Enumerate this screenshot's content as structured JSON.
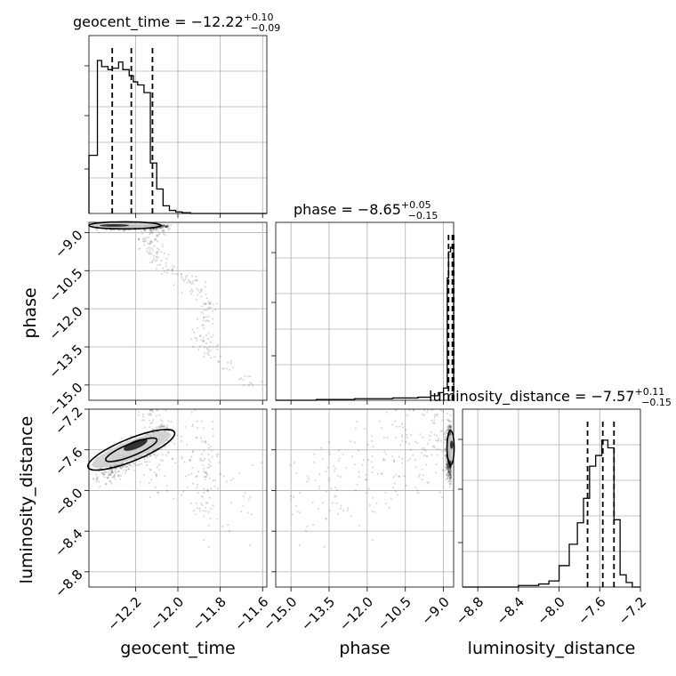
{
  "chart_data": {
    "type": "scatter",
    "variant": "corner-plot",
    "parameters": [
      "geocent_time",
      "phase",
      "luminosity_distance"
    ],
    "titles": [
      {
        "param": "geocent_time",
        "prefix": "geocent_time = −12.22",
        "plus": "+0.10",
        "minus": "−0.09"
      },
      {
        "param": "phase",
        "prefix": "phase = −8.65",
        "plus": "+0.05",
        "minus": "−0.15"
      },
      {
        "param": "luminosity_distance",
        "prefix": "luminosity_distance = −7.57",
        "plus": "+0.11",
        "minus": "−0.15"
      }
    ],
    "axis_labels": {
      "geocent_time": "geocent_time",
      "phase": "phase",
      "luminosity_distance": "luminosity_distance"
    },
    "ranges": {
      "geocent_time": [
        -12.42,
        -11.58
      ],
      "phase": [
        -15.6,
        -8.6
      ],
      "luminosity_distance": [
        -8.95,
        -7.2
      ]
    },
    "ticks": {
      "geocent_time": [
        -12.2,
        -12.0,
        -11.8,
        -11.6
      ],
      "phase": [
        -15.0,
        -13.5,
        -12.0,
        -10.5,
        -9.0
      ],
      "luminosity_distance": [
        -8.8,
        -8.4,
        -8.0,
        -7.6,
        -7.2
      ]
    },
    "tick_labels": {
      "geocent_time": [
        "−12.2",
        "−12.0",
        "−11.8",
        "−11.6"
      ],
      "phase": [
        "−15.0",
        "−13.5",
        "−12.0",
        "−10.5",
        "−9.0"
      ],
      "luminosity_distance": [
        "−8.8",
        "−8.4",
        "−8.0",
        "−7.6",
        "−7.2"
      ]
    },
    "quantiles": {
      "geocent_time": [
        -12.31,
        -12.22,
        -12.12
      ],
      "phase": [
        -8.8,
        -8.65,
        -8.6
      ],
      "luminosity_distance": [
        -7.72,
        -7.57,
        -7.46
      ]
    },
    "histograms": {
      "geocent_time": {
        "edges": [
          -12.42,
          -12.38,
          -12.36,
          -12.33,
          -12.31,
          -12.28,
          -12.26,
          -12.23,
          -12.21,
          -12.19,
          -12.16,
          -12.13,
          -12.1,
          -12.07,
          -12.04,
          -12.01,
          -11.98,
          -11.94,
          -11.58
        ],
        "counts": [
          0.38,
          1.0,
          0.96,
          0.94,
          0.95,
          0.99,
          0.94,
          0.9,
          0.86,
          0.84,
          0.79,
          0.33,
          0.16,
          0.05,
          0.02,
          0.01,
          0.005,
          0.0
        ]
      },
      "phase": {
        "edges": [
          -15.6,
          -14.0,
          -12.5,
          -11.0,
          -10.0,
          -9.5,
          -9.2,
          -9.0,
          -8.85,
          -8.8,
          -8.72,
          -8.6
        ],
        "counts": [
          0.0,
          0.005,
          0.01,
          0.015,
          0.02,
          0.03,
          0.05,
          0.08,
          0.8,
          0.97,
          1.0
        ]
      },
      "luminosity_distance": {
        "edges": [
          -8.95,
          -8.4,
          -8.2,
          -8.1,
          -8.0,
          -7.9,
          -7.82,
          -7.76,
          -7.7,
          -7.64,
          -7.58,
          -7.52,
          -7.46,
          -7.4,
          -7.34,
          -7.28,
          -7.2
        ],
        "counts": [
          0.0,
          0.01,
          0.02,
          0.04,
          0.14,
          0.28,
          0.42,
          0.58,
          0.79,
          0.86,
          0.96,
          0.91,
          0.44,
          0.08,
          0.03,
          0.0
        ]
      }
    },
    "scatter_shape": {
      "phase_vs_geocent_time": "dense band near phase -8.7 for geocent_time -12.4 to -12.1, tail curving down to phase -15 at geocent_time -11.6",
      "luminosity_distance_vs_geocent_time": "diagonal band from (-12.4, -7.8) to (-12.0, -7.35)",
      "luminosity_distance_vs_phase": "dense cluster near phase -8.65, distance -7.6 with diffuse spread toward phase -12"
    },
    "grid": true,
    "legend": "none"
  }
}
